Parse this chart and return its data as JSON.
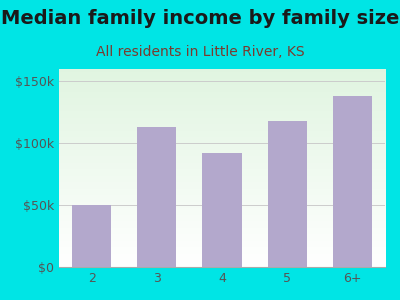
{
  "title": "Median family income by family size",
  "subtitle": "All residents in Little River, KS",
  "categories": [
    "2",
    "3",
    "4",
    "5",
    "6+"
  ],
  "values": [
    50000,
    113000,
    92000,
    118000,
    138000
  ],
  "bar_color": "#b3a8cc",
  "title_color": "#1a1a1a",
  "subtitle_color": "#7a3b2e",
  "bg_color": "#00e5e5",
  "ylabel_ticks": [
    0,
    50000,
    100000,
    150000
  ],
  "ylabel_labels": [
    "$0",
    "$50k",
    "$100k",
    "$150k"
  ],
  "ylim": [
    0,
    160000
  ],
  "tick_color": "#555555",
  "grid_color": "#cccccc",
  "title_fontsize": 14,
  "subtitle_fontsize": 10,
  "tick_fontsize": 9
}
